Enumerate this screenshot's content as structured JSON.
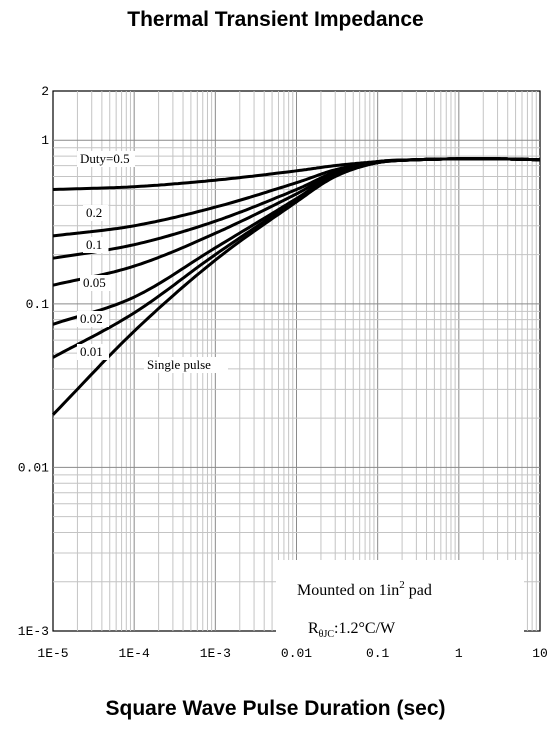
{
  "chart_data": {
    "type": "line",
    "title": "Thermal Transient Impedance",
    "xlabel": "Square Wave Pulse Duration (sec)",
    "ylabel": "",
    "xscale": "log",
    "yscale": "log",
    "xlim": [
      1e-05,
      10
    ],
    "ylim": [
      0.001,
      2
    ],
    "grid": true,
    "x_tick_labels": [
      "1E-5",
      "1E-4",
      "1E-3",
      "0.01",
      "0.1",
      "1",
      "10"
    ],
    "y_tick_labels": [
      "1E-3",
      "0.01",
      "0.1",
      "1",
      "2"
    ],
    "series": [
      {
        "name": "Duty=0.5",
        "x": [
          1e-05,
          0.0001,
          0.001,
          0.01,
          0.03,
          0.1,
          0.3,
          1,
          3,
          10
        ],
        "y": [
          0.5,
          0.52,
          0.57,
          0.65,
          0.7,
          0.74,
          0.76,
          0.77,
          0.77,
          0.76
        ]
      },
      {
        "name": "0.2",
        "x": [
          1e-05,
          0.0001,
          0.001,
          0.01,
          0.03,
          0.1,
          0.3,
          1,
          3,
          10
        ],
        "y": [
          0.26,
          0.3,
          0.39,
          0.55,
          0.66,
          0.74,
          0.76,
          0.77,
          0.77,
          0.76
        ]
      },
      {
        "name": "0.1",
        "x": [
          1e-05,
          0.0001,
          0.001,
          0.01,
          0.03,
          0.1,
          0.3,
          1,
          3,
          10
        ],
        "y": [
          0.19,
          0.23,
          0.32,
          0.5,
          0.64,
          0.74,
          0.76,
          0.77,
          0.77,
          0.76
        ]
      },
      {
        "name": "0.05",
        "x": [
          1e-05,
          0.0001,
          0.001,
          0.01,
          0.03,
          0.1,
          0.3,
          1,
          3,
          10
        ],
        "y": [
          0.13,
          0.17,
          0.27,
          0.47,
          0.63,
          0.73,
          0.76,
          0.77,
          0.77,
          0.76
        ]
      },
      {
        "name": "0.02",
        "x": [
          1e-05,
          0.0001,
          0.001,
          0.01,
          0.03,
          0.1,
          0.3,
          1,
          3,
          10
        ],
        "y": [
          0.075,
          0.11,
          0.22,
          0.44,
          0.62,
          0.73,
          0.76,
          0.77,
          0.77,
          0.76
        ]
      },
      {
        "name": "0.01",
        "x": [
          1e-05,
          0.0001,
          0.001,
          0.01,
          0.03,
          0.1,
          0.3,
          1,
          3,
          10
        ],
        "y": [
          0.047,
          0.088,
          0.2,
          0.43,
          0.61,
          0.73,
          0.76,
          0.77,
          0.77,
          0.76
        ]
      },
      {
        "name": "Single pulse",
        "x": [
          1e-05,
          0.0001,
          0.001,
          0.01,
          0.03,
          0.1,
          0.3,
          1,
          3,
          10
        ],
        "y": [
          0.021,
          0.068,
          0.185,
          0.42,
          0.6,
          0.73,
          0.76,
          0.77,
          0.77,
          0.76
        ]
      }
    ],
    "annotation_line1": "Mounted on 1in",
    "annotation_sup": "2",
    "annotation_line1_end": " pad",
    "annotation_line2_prefix": "R",
    "annotation_line2_sub": "θJC",
    "annotation_line2_suffix": ":1.2°C/W"
  }
}
